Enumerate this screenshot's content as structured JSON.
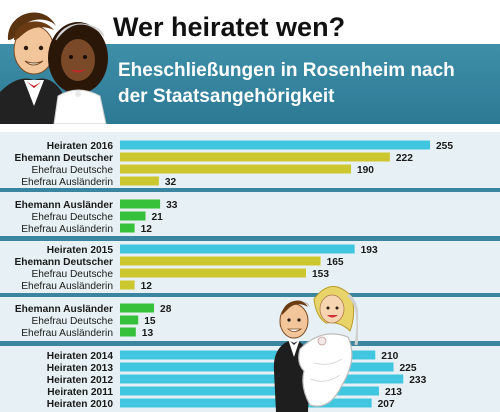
{
  "header": {
    "title": "Wer heiratet wen?",
    "subtitle_line1": "Eheschließungen in Rosenheim nach",
    "subtitle_line2": "der Staatsangehörigkeit"
  },
  "colors": {
    "banner": "#2f7d97",
    "band_dark": "#3a86a0",
    "band_light": "#e7f1f5",
    "bar_total": "#41c6e0",
    "bar_german_husband": "#ccc72f",
    "bar_foreign_husband": "#37c13a"
  },
  "chart_data": {
    "type": "bar",
    "orientation": "horizontal",
    "categories": [
      "Heiraten 2016",
      "Ehemann Deutscher",
      "Ehefrau Deutsche",
      "Ehefrau Ausländerin",
      "Ehemann Ausländer",
      "Ehefrau Deutsche",
      "Ehefrau Ausländerin",
      "Heiraten 2015",
      "Ehemann Deutscher",
      "Ehefrau Deutsche",
      "Ehefrau Ausländerin",
      "Ehemann Ausländer",
      "Ehefrau Deutsche",
      "Ehefrau Ausländerin",
      "Heiraten 2014",
      "Heiraten 2013",
      "Heiraten 2012",
      "Heiraten 2011",
      "Heiraten 2010"
    ],
    "values": [
      255,
      222,
      190,
      32,
      33,
      21,
      12,
      193,
      165,
      153,
      12,
      28,
      15,
      13,
      210,
      225,
      233,
      213,
      207
    ],
    "value_labels": [
      "255",
      "222",
      "190",
      "32",
      "33",
      "21",
      "12",
      "193",
      "165",
      "153",
      "12",
      "28",
      "15",
      "13",
      "210",
      "225",
      "233",
      "213",
      "207"
    ],
    "title": "Wer heiratet wen?",
    "subtitle": "Eheschließungen in Rosenheim nach der Staatsangehörigkeit",
    "xlim": [
      0,
      255
    ],
    "grid": false
  }
}
